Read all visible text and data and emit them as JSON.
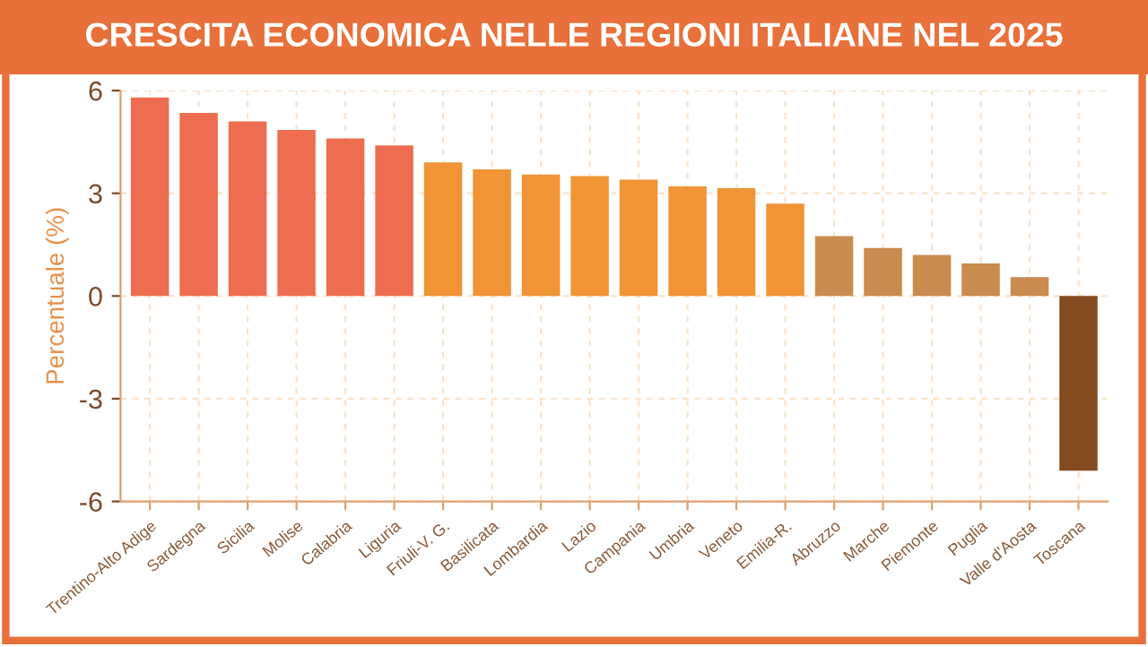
{
  "chart_data": {
    "type": "bar",
    "title": "CRESCITA ECONOMICA NELLE REGIONI ITALIANE NEL 2025",
    "ylabel": "Percentuale (%)",
    "categories": [
      "Trentino-Alto Adige",
      "Sardegna",
      "Sicilia",
      "Molise",
      "Calabria",
      "Liguria",
      "Friuli-V. G.",
      "Basilicata",
      "Lombardia",
      "Lazio",
      "Campania",
      "Umbria",
      "Veneto",
      "Emilia-R.",
      "Abruzzo",
      "Marche",
      "Piemonte",
      "Puglia",
      "Valle d'Aosta",
      "Toscana"
    ],
    "values": [
      5.8,
      5.35,
      5.1,
      4.85,
      4.6,
      4.4,
      3.9,
      3.7,
      3.55,
      3.5,
      3.4,
      3.2,
      3.15,
      2.7,
      1.75,
      1.4,
      1.2,
      0.95,
      0.55,
      -5.1
    ],
    "colors": [
      "#ee6c50",
      "#ee6c50",
      "#ee6c50",
      "#ee6c50",
      "#ee6c50",
      "#ee6c50",
      "#f09436",
      "#f09436",
      "#f09436",
      "#f09436",
      "#f09436",
      "#f09436",
      "#f09436",
      "#f09436",
      "#c98b4e",
      "#c98b4e",
      "#c98b4e",
      "#c98b4e",
      "#c98b4e",
      "#844a20"
    ],
    "ylim": [
      -6,
      6
    ],
    "yticks": [
      -6,
      -3,
      0,
      3,
      6
    ],
    "grid": true
  }
}
